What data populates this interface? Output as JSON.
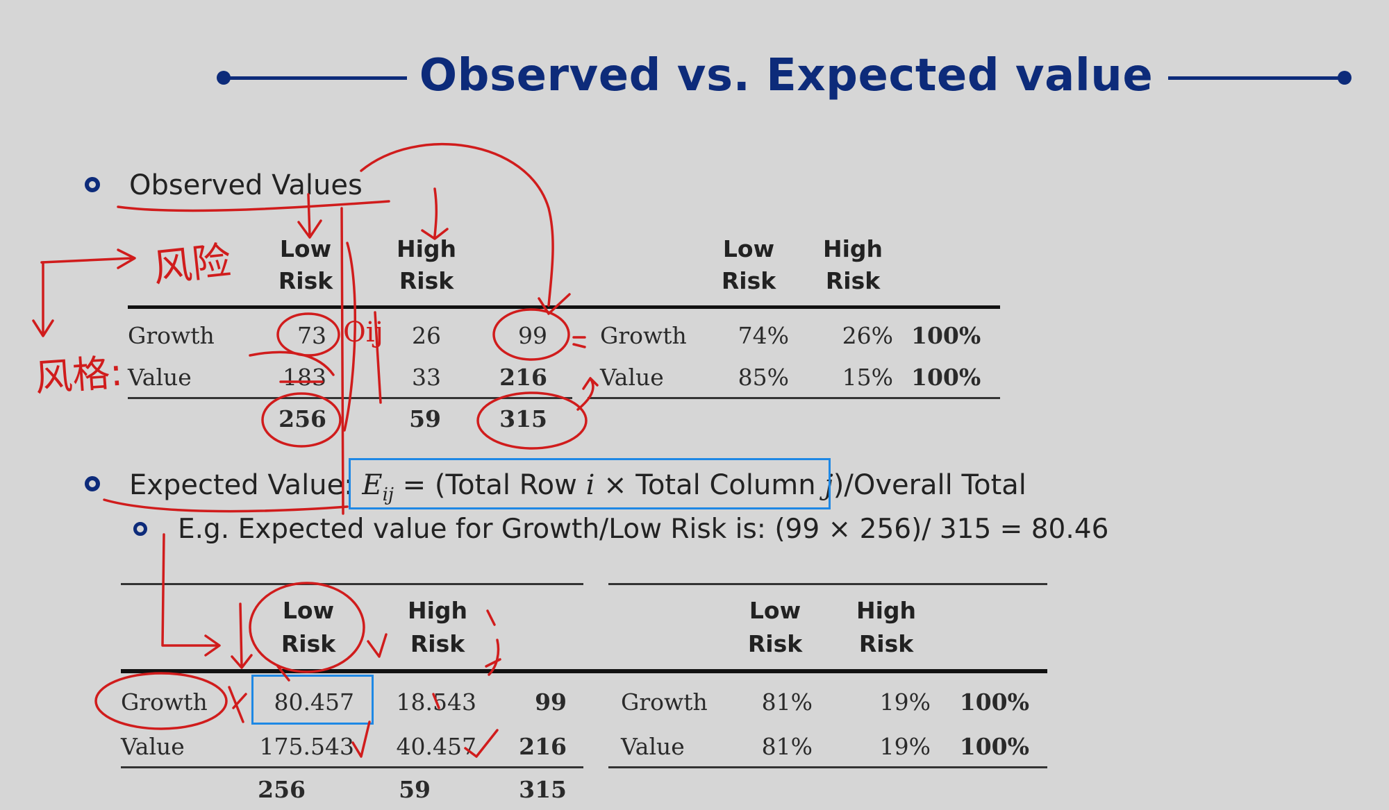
{
  "title": "Observed vs. Expected value",
  "observed": {
    "heading": "Observed Values",
    "table1": {
      "col_headers": [
        {
          "line1": "Low",
          "line2": "Risk"
        },
        {
          "line1": "High",
          "line2": "Risk"
        }
      ],
      "rows": [
        {
          "label": "Growth",
          "low": "73",
          "high": "26",
          "total": "99"
        },
        {
          "label": "Value",
          "low": "183",
          "high": "33",
          "total": "216"
        }
      ],
      "totals": {
        "low": "256",
        "high": "59",
        "total": "315"
      }
    },
    "table2": {
      "col_headers": [
        {
          "line1": "Low",
          "line2": "Risk"
        },
        {
          "line1": "High",
          "line2": "Risk"
        }
      ],
      "rows": [
        {
          "label": "Growth",
          "low": "74%",
          "high": "26%",
          "total": "100%"
        },
        {
          "label": "Value",
          "low": "85%",
          "high": "15%",
          "total": "100%"
        }
      ]
    }
  },
  "expected": {
    "heading": "Expected Value:",
    "formula_lhs": "E",
    "formula_sub": "ij",
    "formula_mid": " = (Total Row ",
    "formula_i": "i",
    "formula_mid2": " × Total Column ",
    "formula_j": "j",
    "formula_close": ")",
    "formula_tail": "/Overall Total",
    "example": "E.g. Expected value for Growth/Low Risk is: (99 × 256)/ 315 = 80.46",
    "table1": {
      "col_headers": [
        {
          "line1": "Low",
          "line2": "Risk"
        },
        {
          "line1": "High",
          "line2": "Risk"
        }
      ],
      "rows": [
        {
          "label": "Growth",
          "low": "80.457",
          "high": "18.543",
          "total": "99"
        },
        {
          "label": "Value",
          "low": "175.543",
          "high": "40.457",
          "total": "216"
        }
      ],
      "totals": {
        "low": "256",
        "high": "59",
        "total": "315"
      }
    },
    "table2": {
      "col_headers": [
        {
          "line1": "Low",
          "line2": "Risk"
        },
        {
          "line1": "High",
          "line2": "Risk"
        }
      ],
      "rows": [
        {
          "label": "Growth",
          "low": "81%",
          "high": "19%",
          "total": "100%"
        },
        {
          "label": "Value",
          "low": "81%",
          "high": "19%",
          "total": "100%"
        }
      ]
    }
  },
  "handwriting": {
    "risk_note": "风险",
    "style_note": "风格:",
    "o_ij": "Oij"
  },
  "colors": {
    "title": "#0d2b7a",
    "ink": "#d01c1c",
    "highlight": "#1e88e5"
  }
}
